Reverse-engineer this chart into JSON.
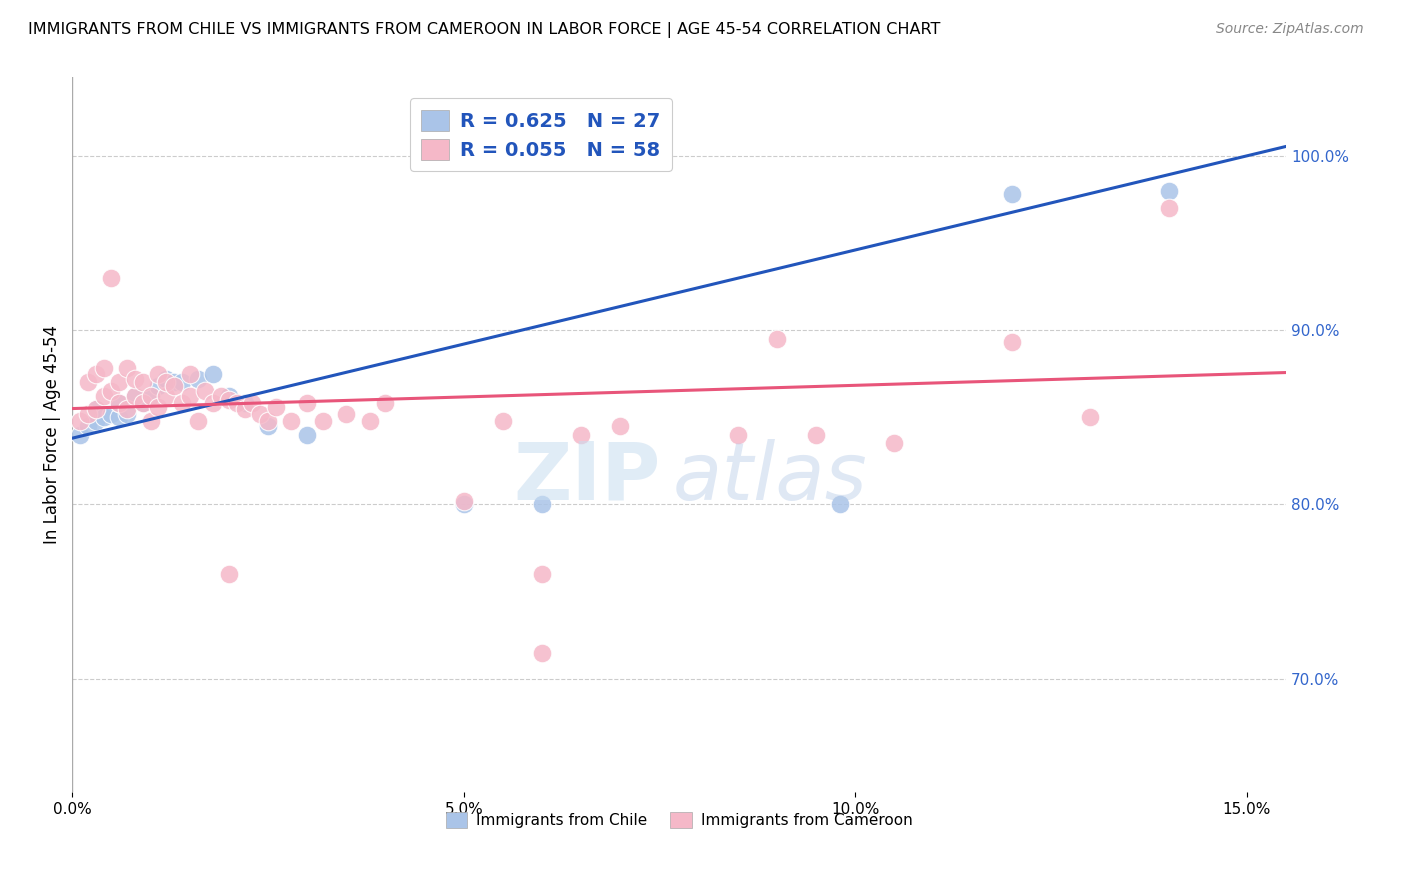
{
  "title": "IMMIGRANTS FROM CHILE VS IMMIGRANTS FROM CAMEROON IN LABOR FORCE | AGE 45-54 CORRELATION CHART",
  "source": "Source: ZipAtlas.com",
  "xlabel_ticks": [
    "0.0%",
    "5.0%",
    "10.0%",
    "15.0%"
  ],
  "xlabel_tick_vals": [
    0.0,
    0.05,
    0.1,
    0.15
  ],
  "ylabel": "In Labor Force | Age 45-54",
  "ylabel_right_ticks": [
    "70.0%",
    "80.0%",
    "90.0%",
    "100.0%"
  ],
  "ylabel_right_vals": [
    0.7,
    0.8,
    0.9,
    1.0
  ],
  "xlim": [
    0.0,
    0.155
  ],
  "ylim": [
    0.635,
    1.045
  ],
  "legend_chile_R": "0.625",
  "legend_chile_N": "27",
  "legend_cameroon_R": "0.055",
  "legend_cameroon_N": "58",
  "chile_color": "#aac4e8",
  "cameroon_color": "#f5b8c8",
  "trendline_chile_color": "#2255bb",
  "trendline_cameroon_color": "#e8557a",
  "watermark_zip": "ZIP",
  "watermark_atlas": "atlas",
  "chile_x": [
    0.001,
    0.002,
    0.003,
    0.003,
    0.004,
    0.005,
    0.006,
    0.006,
    0.007,
    0.008,
    0.009,
    0.01,
    0.011,
    0.012,
    0.013,
    0.014,
    0.016,
    0.018,
    0.02,
    0.022,
    0.025,
    0.03,
    0.05,
    0.06,
    0.098,
    0.12,
    0.14
  ],
  "chile_y": [
    0.84,
    0.845,
    0.848,
    0.855,
    0.85,
    0.852,
    0.85,
    0.858,
    0.852,
    0.862,
    0.858,
    0.862,
    0.868,
    0.872,
    0.87,
    0.87,
    0.872,
    0.875,
    0.862,
    0.858,
    0.845,
    0.84,
    0.8,
    0.8,
    0.8,
    0.978,
    0.98
  ],
  "cameroon_x": [
    0.001,
    0.002,
    0.002,
    0.003,
    0.003,
    0.004,
    0.004,
    0.005,
    0.005,
    0.006,
    0.006,
    0.007,
    0.007,
    0.008,
    0.008,
    0.009,
    0.009,
    0.01,
    0.01,
    0.011,
    0.011,
    0.012,
    0.012,
    0.013,
    0.014,
    0.015,
    0.015,
    0.016,
    0.017,
    0.018,
    0.019,
    0.02,
    0.021,
    0.022,
    0.023,
    0.024,
    0.025,
    0.026,
    0.028,
    0.03,
    0.032,
    0.035,
    0.038,
    0.04,
    0.05,
    0.055,
    0.06,
    0.065,
    0.07,
    0.085,
    0.09,
    0.095,
    0.105,
    0.12,
    0.13,
    0.14,
    0.06,
    0.02
  ],
  "cameroon_y": [
    0.848,
    0.852,
    0.87,
    0.855,
    0.875,
    0.862,
    0.878,
    0.865,
    0.93,
    0.858,
    0.87,
    0.855,
    0.878,
    0.862,
    0.872,
    0.858,
    0.87,
    0.848,
    0.862,
    0.856,
    0.875,
    0.862,
    0.87,
    0.868,
    0.858,
    0.862,
    0.875,
    0.848,
    0.865,
    0.858,
    0.862,
    0.86,
    0.858,
    0.855,
    0.858,
    0.852,
    0.848,
    0.856,
    0.848,
    0.858,
    0.848,
    0.852,
    0.848,
    0.858,
    0.802,
    0.848,
    0.76,
    0.84,
    0.845,
    0.84,
    0.895,
    0.84,
    0.835,
    0.893,
    0.85,
    0.97,
    0.715,
    0.76
  ]
}
